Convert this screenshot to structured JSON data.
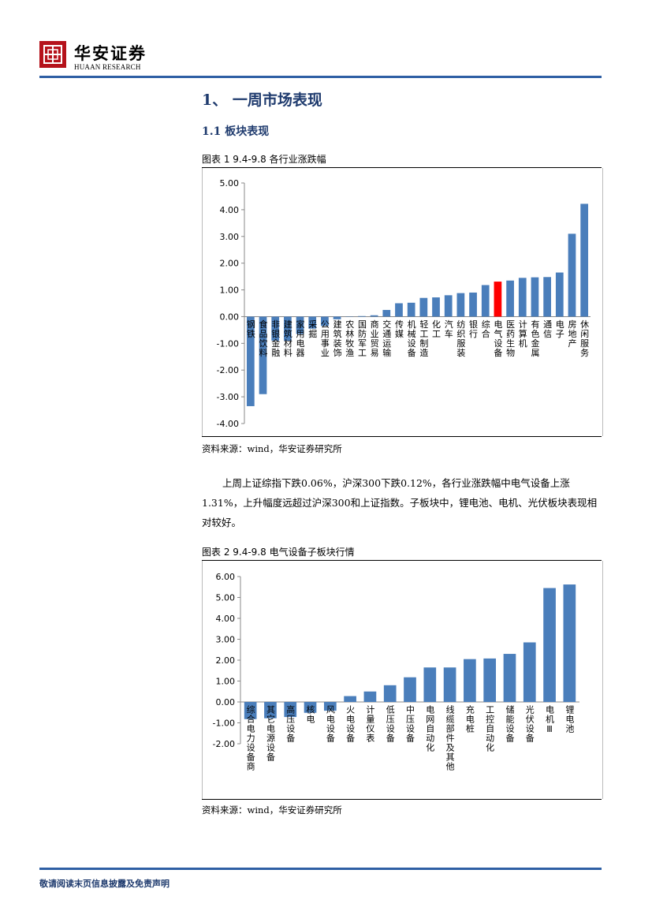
{
  "header": {
    "brand_name": "华安证券",
    "brand_sub": "HUAAN RESEARCH"
  },
  "section": {
    "title": "1、 一周市场表现",
    "subtitle": "1.1 板块表现"
  },
  "figure1": {
    "caption": "图表 1 9.4-9.8 各行业涨跌幅",
    "source": "资料来源：wind，华安证券研究所"
  },
  "paragraph": "上周上证综指下跌0.06%，沪深300下跌0.12%，各行业涨跌幅中电气设备上涨1.31%，上升幅度远超过沪深300和上证指数。子板块中，锂电池、电机、光伏板块表现相对较好。",
  "figure2": {
    "caption": "图表 2 9.4-9.8 电气设备子板块行情",
    "source": "资料来源：wind，华安证券研究所"
  },
  "footer": {
    "disclaimer": "敬请阅读末页信息披露及免责声明"
  },
  "colors": {
    "bar": "#4a7ebb",
    "highlight": "#ff0000",
    "accent": "#2e5fa4"
  },
  "chart_data": [
    {
      "type": "bar",
      "title": "",
      "xlabel": "",
      "ylabel": "",
      "ylim": [
        -4,
        5
      ],
      "yticks": [
        "5.00",
        "4.00",
        "3.00",
        "2.00",
        "1.00",
        "0.00",
        "-1.00",
        "-2.00",
        "-3.00",
        "-4.00"
      ],
      "highlight_category": "电气设备",
      "categories": [
        "钢铁",
        "食品饮料",
        "非银金融",
        "建筑材料",
        "家用电器",
        "采掘",
        "公用事业",
        "建筑装饰",
        "农林牧渔",
        "国防军工",
        "商业贸易",
        "交通运输",
        "传媒",
        "机械设备",
        "轻工制造",
        "化工",
        "汽车",
        "纺织服装",
        "银行",
        "综合",
        "电气设备",
        "医药生物",
        "计算机",
        "有色金属",
        "通信",
        "电子",
        "房地产",
        "休闲服务"
      ],
      "values": [
        -3.35,
        -2.9,
        -0.9,
        -0.9,
        -0.65,
        -0.45,
        -0.35,
        -0.1,
        0.0,
        0.02,
        0.05,
        0.25,
        0.5,
        0.52,
        0.7,
        0.72,
        0.8,
        0.88,
        0.9,
        1.18,
        1.31,
        1.35,
        1.45,
        1.47,
        1.48,
        1.65,
        3.1,
        4.22
      ]
    },
    {
      "type": "bar",
      "title": "",
      "xlabel": "",
      "ylabel": "",
      "ylim": [
        -2,
        6
      ],
      "yticks": [
        "6.00",
        "5.00",
        "4.00",
        "3.00",
        "2.00",
        "1.00",
        "0.00",
        "-1.00",
        "-2.00"
      ],
      "categories": [
        "综合电力设备商",
        "其它电源设备",
        "高压设备",
        "核电",
        "风电设备",
        "火电设备",
        "计量仪表",
        "低压设备",
        "中压设备",
        "电网自动化",
        "线缆部件及其他",
        "充电桩",
        "工控自动化",
        "储能设备",
        "光伏设备",
        "电机Ⅲ",
        "锂电池"
      ],
      "values": [
        -0.82,
        -0.78,
        -0.72,
        -0.52,
        -0.42,
        0.28,
        0.5,
        0.8,
        1.18,
        1.65,
        1.65,
        2.05,
        2.08,
        2.3,
        2.85,
        5.45,
        5.62
      ]
    }
  ]
}
